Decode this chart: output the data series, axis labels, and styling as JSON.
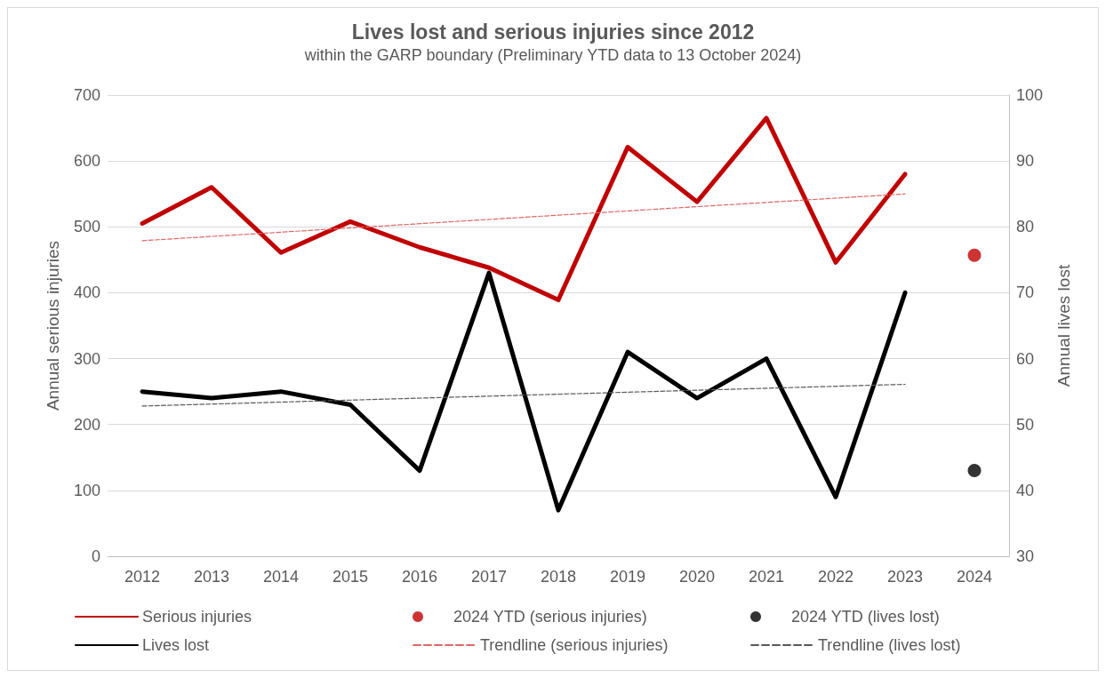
{
  "chart_data": {
    "type": "line",
    "title": "Lives lost and serious injuries since 2012",
    "subtitle": "within the GARP boundary (Preliminary YTD data to 13 October 2024)",
    "ylabel": "Annual serious injuries",
    "y2label": "Annual lives lost",
    "categories": [
      "2012",
      "2013",
      "2014",
      "2015",
      "2016",
      "2017",
      "2018",
      "2019",
      "2020",
      "2021",
      "2022",
      "2023",
      "2024"
    ],
    "ylim": [
      0,
      700
    ],
    "yticks": [
      0,
      100,
      200,
      300,
      400,
      500,
      600,
      700
    ],
    "y2lim": [
      30,
      100
    ],
    "y2ticks": [
      30,
      40,
      50,
      60,
      70,
      80,
      90,
      100
    ],
    "grid": "y",
    "legend": "bottom",
    "series": [
      {
        "name": "Serious injuries",
        "type": "line",
        "color": "#c00000",
        "marker": "none",
        "line_style": "solid",
        "values": [
          505,
          560,
          461,
          508,
          469,
          438,
          389,
          621,
          538,
          665,
          446,
          580,
          null
        ]
      },
      {
        "name": "2024 YTD (serious injuries)",
        "type": "scatter",
        "color": "#c00000",
        "marker": "circle",
        "values": [
          null,
          null,
          null,
          null,
          null,
          null,
          null,
          null,
          null,
          null,
          null,
          null,
          457
        ]
      },
      {
        "name": "2024 YTD (lives lost)",
        "type": "scatter",
        "color": "#000000",
        "marker": "circle",
        "axis": "y2",
        "values": [
          null,
          null,
          null,
          null,
          null,
          null,
          null,
          null,
          null,
          null,
          null,
          null,
          43
        ]
      },
      {
        "name": "Lives lost",
        "type": "line",
        "color": "#000000",
        "marker": "none",
        "line_style": "solid",
        "axis": "y2",
        "values": [
          55,
          54,
          55,
          53,
          43,
          73,
          37,
          61,
          54,
          60,
          39,
          70,
          null
        ]
      },
      {
        "name": "Trendline (serious injuries)",
        "type": "line",
        "color": "#e06666",
        "marker": "none",
        "line_style": "dashed",
        "values": [
          479,
          null,
          null,
          null,
          null,
          null,
          null,
          null,
          null,
          null,
          null,
          550,
          null
        ]
      },
      {
        "name": "Trendline (lives lost)",
        "type": "line",
        "color": "#595959",
        "marker": "none",
        "line_style": "dashed",
        "axis": "y2",
        "values": [
          52.8,
          null,
          null,
          null,
          null,
          null,
          null,
          null,
          null,
          null,
          null,
          56.1,
          null
        ]
      }
    ]
  }
}
